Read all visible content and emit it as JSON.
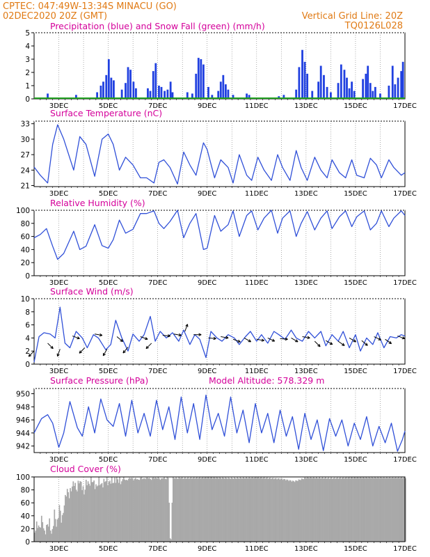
{
  "header": {
    "line1_left": "CPTEC:   047:49W-13:34S   MINACU (GO)",
    "line2_left": "02DEC2020 20Z (GMT)",
    "line1_right": "",
    "line2_right": "Vertical Grid Line: 20Z",
    "line3_right": "TQ0126L028"
  },
  "colors": {
    "header": "#e07a14",
    "titles": "#d4009a",
    "series_line": "#3050d8",
    "precip_bar": "#2040e0",
    "snow_line": "#20a020",
    "cloud_fill": "#a9a9a9",
    "wind_arrow": "#000000"
  },
  "x_axis": {
    "labels": [
      "3DEC",
      "5DEC",
      "7DEC",
      "9DEC",
      "11DEC",
      "13DEC",
      "15DEC",
      "17DEC"
    ],
    "start": "2020-12-02T20:00Z",
    "end": "2020-12-17T00:00Z"
  },
  "chart_data": [
    {
      "type": "bar",
      "title": "Precipitation (blue) and Snow Fall (green) (mm/h)",
      "ylim": [
        0,
        5
      ],
      "yticks": [
        "0",
        "1",
        "2",
        "3",
        "4",
        "5"
      ],
      "series": [
        {
          "name": "Precipitation",
          "x": [
            2.55,
            3.7,
            4.55,
            4.7,
            4.8,
            4.92,
            5.02,
            5.12,
            5.22,
            5.55,
            5.7,
            5.8,
            5.9,
            6.02,
            6.12,
            6.6,
            6.7,
            6.82,
            6.92,
            7.05,
            7.15,
            7.28,
            7.4,
            7.52,
            7.6,
            8.2,
            8.4,
            8.55,
            8.65,
            8.75,
            8.85,
            9.05,
            9.2,
            9.45,
            9.55,
            9.65,
            9.75,
            9.85,
            10.05,
            10.6,
            10.7,
            11.9,
            12.1,
            12.6,
            12.72,
            12.85,
            12.95,
            13.05,
            13.25,
            13.5,
            13.6,
            13.72,
            13.85,
            14.0,
            14.3,
            14.42,
            14.55,
            14.65,
            14.75,
            14.85,
            14.95,
            15.3,
            15.42,
            15.5,
            15.6,
            15.7,
            15.8,
            16.0,
            16.35,
            16.5,
            16.6,
            16.72,
            16.85,
            16.92
          ],
          "values": [
            0.4,
            0.3,
            0.5,
            1.0,
            1.3,
            1.8,
            3.0,
            1.6,
            1.4,
            0.7,
            1.2,
            2.4,
            2.2,
            1.3,
            0.8,
            0.8,
            0.6,
            2.1,
            2.7,
            1.0,
            0.9,
            0.6,
            0.7,
            1.3,
            0.5,
            0.5,
            0.4,
            1.9,
            3.1,
            3.0,
            2.6,
            0.9,
            0.3,
            0.6,
            1.3,
            1.8,
            1.1,
            0.7,
            0.3,
            0.4,
            0.3,
            0.2,
            0.3,
            0.7,
            2.4,
            3.7,
            2.8,
            1.9,
            0.6,
            1.3,
            2.5,
            1.8,
            0.9,
            0.5,
            1.2,
            2.6,
            2.2,
            1.6,
            0.8,
            1.3,
            0.6,
            1.5,
            1.9,
            2.5,
            1.2,
            0.6,
            0.9,
            0.4,
            1.0,
            2.5,
            1.1,
            1.6,
            2.1,
            2.8
          ]
        },
        {
          "name": "Snow Fall",
          "x": [
            2.0,
            17.0
          ],
          "values": [
            0,
            0
          ]
        }
      ]
    },
    {
      "type": "line",
      "title": "Surface Temperature (nC)",
      "ylim": [
        20.8,
        33.5
      ],
      "yticks": [
        "21",
        "24",
        "27",
        "30",
        "33"
      ],
      "x": [
        2.0,
        2.25,
        2.55,
        2.75,
        2.95,
        3.2,
        3.6,
        3.85,
        4.1,
        4.45,
        4.75,
        5.0,
        5.2,
        5.45,
        5.7,
        6.0,
        6.3,
        6.55,
        6.85,
        7.05,
        7.25,
        7.5,
        7.8,
        8.05,
        8.3,
        8.55,
        8.85,
        9.0,
        9.3,
        9.55,
        9.85,
        10.05,
        10.3,
        10.6,
        10.8,
        11.05,
        11.3,
        11.6,
        11.85,
        12.05,
        12.35,
        12.6,
        12.8,
        13.05,
        13.35,
        13.6,
        13.85,
        14.05,
        14.35,
        14.6,
        14.85,
        15.05,
        15.35,
        15.6,
        15.85,
        16.05,
        16.35,
        16.55,
        16.85,
        17.0
      ],
      "values": [
        24.6,
        23.0,
        21.5,
        29.0,
        32.8,
        30.0,
        24.0,
        30.5,
        29.0,
        22.8,
        30.0,
        31.0,
        29.0,
        24.0,
        26.5,
        25.0,
        22.5,
        22.5,
        21.5,
        25.5,
        26.0,
        24.5,
        21.3,
        27.5,
        25.0,
        23.0,
        29.3,
        28.0,
        22.5,
        26.0,
        24.5,
        21.5,
        27.0,
        23.0,
        22.0,
        26.5,
        24.0,
        22.0,
        27.0,
        24.5,
        22.0,
        27.8,
        24.5,
        22.0,
        26.5,
        24.0,
        22.5,
        26.0,
        23.5,
        22.5,
        26.0,
        23.0,
        22.5,
        26.3,
        25.0,
        22.5,
        26.0,
        24.5,
        23.0,
        23.5
      ],
      "ylabel": ""
    },
    {
      "type": "line",
      "title": "Relative Humidity (%)",
      "ylim": [
        0,
        100
      ],
      "yticks": [
        "0",
        "20",
        "40",
        "60",
        "80",
        "100"
      ],
      "x": [
        2.0,
        2.25,
        2.5,
        2.75,
        2.95,
        3.2,
        3.6,
        3.85,
        4.1,
        4.45,
        4.75,
        5.0,
        5.2,
        5.45,
        5.7,
        6.0,
        6.3,
        6.55,
        6.85,
        7.05,
        7.25,
        7.5,
        7.8,
        8.05,
        8.3,
        8.55,
        8.85,
        9.0,
        9.3,
        9.55,
        9.85,
        10.05,
        10.3,
        10.6,
        10.8,
        11.05,
        11.3,
        11.6,
        11.85,
        12.05,
        12.35,
        12.6,
        12.8,
        13.05,
        13.35,
        13.6,
        13.85,
        14.05,
        14.35,
        14.6,
        14.85,
        15.05,
        15.35,
        15.6,
        15.85,
        16.05,
        16.35,
        16.55,
        16.85,
        17.0
      ],
      "values": [
        58,
        63,
        72,
        45,
        25,
        34,
        68,
        40,
        45,
        78,
        46,
        42,
        55,
        85,
        65,
        71,
        95,
        95,
        99,
        80,
        72,
        83,
        100,
        58,
        80,
        95,
        40,
        42,
        92,
        68,
        78,
        99,
        60,
        92,
        99,
        70,
        88,
        100,
        65,
        88,
        99,
        60,
        80,
        98,
        70,
        88,
        99,
        72,
        90,
        99,
        75,
        90,
        99,
        70,
        80,
        99,
        75,
        88,
        99,
        92
      ],
      "ylabel": ""
    },
    {
      "type": "line",
      "title": "Surface Wind (m/s)",
      "ylim": [
        0,
        10
      ],
      "yticks": [
        "0",
        "2",
        "4",
        "6",
        "8",
        "10"
      ],
      "x": [
        2.0,
        2.2,
        2.4,
        2.65,
        2.85,
        3.05,
        3.25,
        3.45,
        3.7,
        3.95,
        4.15,
        4.4,
        4.6,
        4.9,
        5.1,
        5.3,
        5.55,
        5.8,
        6.0,
        6.25,
        6.45,
        6.7,
        6.9,
        7.1,
        7.35,
        7.6,
        7.85,
        8.05,
        8.3,
        8.5,
        8.7,
        8.95,
        9.15,
        9.4,
        9.6,
        9.85,
        10.1,
        10.3,
        10.55,
        10.75,
        11.0,
        11.2,
        11.45,
        11.7,
        11.9,
        12.15,
        12.4,
        12.6,
        12.85,
        13.1,
        13.35,
        13.6,
        13.8,
        14.05,
        14.3,
        14.5,
        14.75,
        15.0,
        15.2,
        15.45,
        15.7,
        15.9,
        16.15,
        16.4,
        16.65,
        16.85,
        17.0
      ],
      "values": [
        0.3,
        4.2,
        4.8,
        4.6,
        4.0,
        8.7,
        3.2,
        2.5,
        5.0,
        4.0,
        2.5,
        4.5,
        4.0,
        2.2,
        3.0,
        6.7,
        4.0,
        2.0,
        4.6,
        3.5,
        4.5,
        7.3,
        3.5,
        5.0,
        4.0,
        4.8,
        3.5,
        5.2,
        3.0,
        4.5,
        3.8,
        1.0,
        5.0,
        4.0,
        3.5,
        4.5,
        4.0,
        3.0,
        4.2,
        5.0,
        3.5,
        4.5,
        3.2,
        5.0,
        4.5,
        3.8,
        5.2,
        4.0,
        3.5,
        5.0,
        4.0,
        5.0,
        2.8,
        4.5,
        3.5,
        5.0,
        2.5,
        4.5,
        2.0,
        4.0,
        3.0,
        4.8,
        2.5,
        4.2,
        4.0,
        4.5,
        4.3
      ],
      "arrows": [
        {
          "x": 2.0,
          "v": 2.0,
          "dir": 225
        },
        {
          "x": 2.55,
          "v": 3.2,
          "dir": 135
        },
        {
          "x": 3.05,
          "v": 2.3,
          "dir": 200
        },
        {
          "x": 3.55,
          "v": 4.3,
          "dir": 110
        },
        {
          "x": 4.05,
          "v": 2.5,
          "dir": 225
        },
        {
          "x": 4.45,
          "v": 4.6,
          "dir": 100
        },
        {
          "x": 4.95,
          "v": 2.3,
          "dir": 210
        },
        {
          "x": 5.35,
          "v": 4.2,
          "dir": 130
        },
        {
          "x": 5.8,
          "v": 2.6,
          "dir": 220
        },
        {
          "x": 6.3,
          "v": 4.2,
          "dir": 110
        },
        {
          "x": 6.75,
          "v": 3.2,
          "dir": 225
        },
        {
          "x": 7.2,
          "v": 4.4,
          "dir": 95
        },
        {
          "x": 7.65,
          "v": 4.6,
          "dir": 100
        },
        {
          "x": 8.1,
          "v": 5.0,
          "dir": 20
        },
        {
          "x": 8.45,
          "v": 4.5,
          "dir": 90
        },
        {
          "x": 9.05,
          "v": 4.0,
          "dir": 95
        },
        {
          "x": 9.55,
          "v": 4.2,
          "dir": 100
        },
        {
          "x": 10.05,
          "v": 3.8,
          "dir": 110
        },
        {
          "x": 10.5,
          "v": 4.0,
          "dir": 120
        },
        {
          "x": 11.0,
          "v": 3.8,
          "dir": 100
        },
        {
          "x": 11.45,
          "v": 4.0,
          "dir": 115
        },
        {
          "x": 11.95,
          "v": 3.9,
          "dir": 95
        },
        {
          "x": 12.4,
          "v": 4.0,
          "dir": 120
        },
        {
          "x": 12.85,
          "v": 4.2,
          "dir": 100
        },
        {
          "x": 13.35,
          "v": 3.5,
          "dir": 135
        },
        {
          "x": 13.8,
          "v": 3.6,
          "dir": 120
        },
        {
          "x": 14.3,
          "v": 3.5,
          "dir": 125
        },
        {
          "x": 14.75,
          "v": 4.0,
          "dir": 120
        },
        {
          "x": 15.25,
          "v": 3.6,
          "dir": 130
        },
        {
          "x": 15.75,
          "v": 4.2,
          "dir": 115
        },
        {
          "x": 16.2,
          "v": 3.8,
          "dir": 125
        },
        {
          "x": 16.7,
          "v": 4.3,
          "dir": 110
        }
      ],
      "ylabel": ""
    },
    {
      "type": "line",
      "title": "Surface Pressure (hPa)",
      "annotation": "Model Altitude: 578.329 m",
      "ylim": [
        941.0,
        950.8
      ],
      "yticks": [
        "942",
        "944",
        "946",
        "948",
        "950"
      ],
      "x": [
        2.0,
        2.3,
        2.55,
        2.75,
        3.0,
        3.2,
        3.45,
        3.75,
        3.95,
        4.2,
        4.45,
        4.7,
        4.95,
        5.2,
        5.45,
        5.7,
        5.95,
        6.2,
        6.45,
        6.7,
        6.95,
        7.2,
        7.45,
        7.7,
        7.95,
        8.2,
        8.45,
        8.7,
        8.95,
        9.2,
        9.45,
        9.7,
        9.95,
        10.2,
        10.45,
        10.7,
        10.95,
        11.2,
        11.45,
        11.7,
        11.95,
        12.2,
        12.45,
        12.7,
        12.95,
        13.2,
        13.45,
        13.7,
        13.95,
        14.2,
        14.45,
        14.7,
        14.95,
        15.2,
        15.45,
        15.7,
        15.95,
        16.2,
        16.45,
        16.7,
        16.9,
        17.0
      ],
      "values": [
        944.0,
        946.2,
        946.8,
        945.5,
        941.8,
        944.0,
        948.8,
        944.8,
        943.5,
        948.0,
        944.0,
        949.2,
        946.0,
        945.0,
        948.5,
        943.5,
        949.0,
        944.0,
        947.0,
        943.5,
        949.0,
        944.5,
        948.0,
        943.0,
        949.5,
        944.0,
        948.5,
        943.0,
        949.8,
        944.5,
        947.0,
        943.5,
        949.5,
        944.0,
        947.5,
        942.5,
        948.5,
        944.0,
        947.0,
        942.5,
        947.5,
        943.5,
        946.5,
        941.5,
        947.0,
        943.0,
        946.0,
        941.3,
        946.2,
        943.5,
        946.0,
        942.0,
        945.5,
        943.0,
        946.5,
        942.0,
        945.0,
        942.5,
        945.5,
        941.2,
        943.0,
        944.3
      ],
      "ylabel": ""
    },
    {
      "type": "area",
      "title": "Cloud Cover (%)",
      "ylim": [
        0,
        100
      ],
      "yticks": [
        "0",
        "20",
        "40",
        "60",
        "80",
        "100"
      ],
      "x": [
        2.0,
        2.1,
        2.2,
        2.3,
        2.4,
        2.5,
        2.6,
        2.7,
        2.8,
        2.9,
        3.0,
        3.1,
        3.2,
        3.3,
        3.4,
        3.5,
        3.6,
        3.7,
        3.8,
        3.9,
        4.0,
        4.1,
        4.2,
        4.3,
        4.4,
        4.5,
        4.6,
        4.7,
        4.8,
        4.9,
        5.0,
        5.1,
        5.2,
        5.3,
        5.4,
        5.5,
        5.6,
        5.7,
        5.8,
        5.9,
        6.0,
        6.1,
        6.2,
        6.3,
        6.4,
        6.5,
        6.6,
        6.7,
        6.8,
        6.9,
        7.0,
        7.1,
        7.2,
        7.3,
        7.4,
        7.5,
        7.6,
        7.7,
        7.8,
        7.9,
        8.0,
        9.0,
        10.0,
        11.0,
        12.0,
        12.5,
        13.0,
        14.0,
        15.0,
        16.0,
        17.0
      ],
      "values": [
        15,
        28,
        20,
        38,
        12,
        25,
        30,
        8,
        45,
        22,
        55,
        30,
        58,
        80,
        72,
        84,
        92,
        78,
        95,
        88,
        75,
        94,
        88,
        97,
        90,
        83,
        96,
        86,
        92,
        97,
        90,
        96,
        92,
        98,
        95,
        93,
        99,
        94,
        97,
        99,
        96,
        98,
        95,
        99,
        97,
        98,
        99,
        96,
        99,
        98,
        99,
        96,
        99,
        97,
        99,
        4,
        99,
        98,
        98,
        99,
        98,
        99,
        98,
        99,
        97,
        93,
        99,
        98,
        99,
        99,
        99
      ],
      "ylabel": ""
    }
  ]
}
